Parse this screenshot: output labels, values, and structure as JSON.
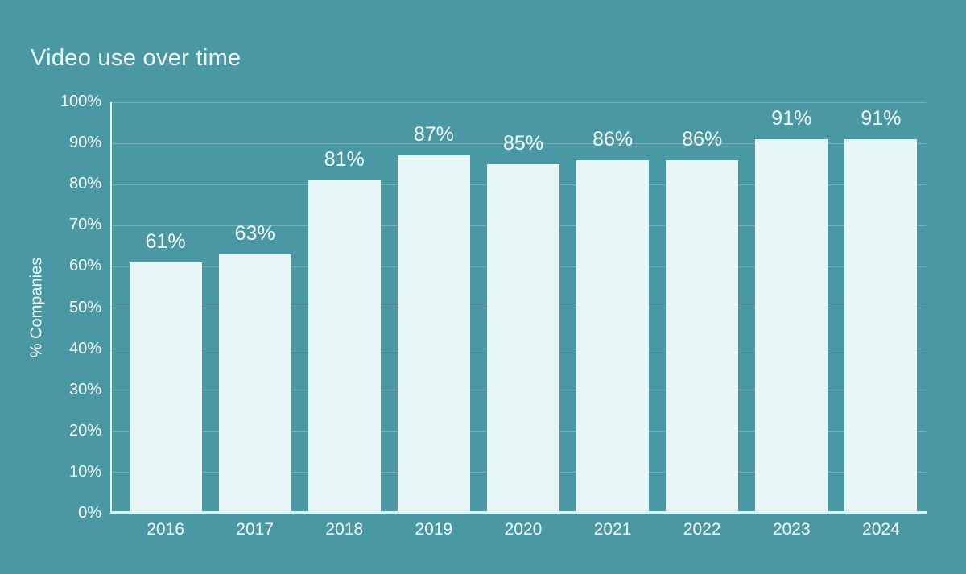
{
  "chart_data": {
    "type": "bar",
    "title": "Video use over time",
    "ylabel": "% Companies",
    "xlabel": "",
    "categories": [
      "2016",
      "2017",
      "2018",
      "2019",
      "2020",
      "2021",
      "2022",
      "2023",
      "2024"
    ],
    "values": [
      61,
      63,
      81,
      87,
      85,
      86,
      86,
      91,
      91
    ],
    "value_labels": [
      "61%",
      "63%",
      "81%",
      "87%",
      "85%",
      "86%",
      "86%",
      "91%",
      "91%"
    ],
    "ylim": [
      0,
      100
    ],
    "yticks": [
      0,
      10,
      20,
      30,
      40,
      50,
      60,
      70,
      80,
      90,
      100
    ],
    "ytick_labels": [
      "0%",
      "10%",
      "20%",
      "30%",
      "40%",
      "50%",
      "60%",
      "70%",
      "80%",
      "90%",
      "100%"
    ],
    "grid": "horizontal",
    "legend": "none",
    "colors": {
      "background": "#4a98a3",
      "bar": "#e9f6f8",
      "text": "#f2fafb",
      "gridline": "rgba(255,255,255,0.25)",
      "axis_line": "#e6f4f6"
    }
  }
}
